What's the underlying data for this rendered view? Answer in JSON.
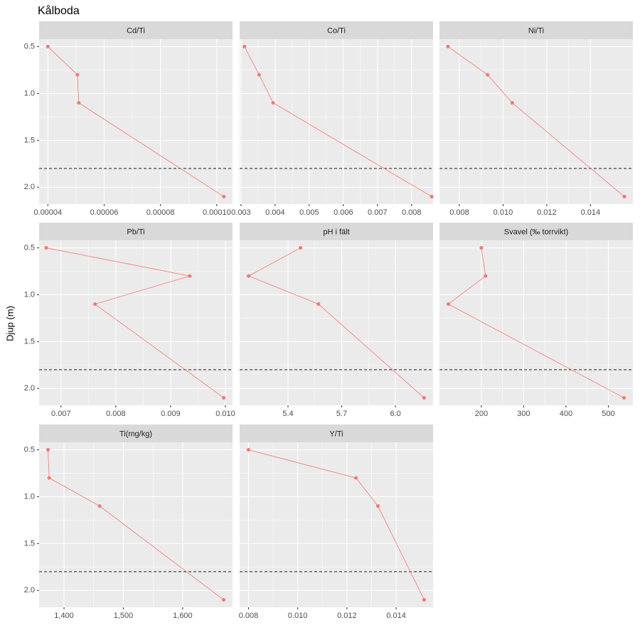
{
  "title": "Kålboda",
  "y_label": "Djup (m)",
  "chart_data": [
    {
      "type": "line",
      "title": "Cd/Ti",
      "x": [
        4e-05,
        5.05e-05,
        5.1e-05,
        0.0001025
      ],
      "y": [
        0.5,
        0.8,
        1.1,
        2.1
      ],
      "color": "#f8766d",
      "xlim": [
        3.69e-05,
        0.0001056
      ],
      "xticks": [
        4e-05,
        6e-05,
        8e-05,
        {
          "value": 0.0001,
          "label": "0.00010"
        }
      ],
      "ylim": [
        0.42,
        2.18
      ],
      "yticks": [
        0.5,
        {
          "value": 1,
          "label": "1.0"
        },
        1.5,
        {
          "value": 2,
          "label": "2.0"
        }
      ],
      "y_reverse": true,
      "hline": 1.8,
      "grid": true
    },
    {
      "type": "line",
      "title": "Co/Ti",
      "x": [
        0.0031,
        0.00353,
        0.00394,
        0.00859
      ],
      "y": [
        0.5,
        0.8,
        1.1,
        2.1
      ],
      "color": "#f8766d",
      "xlim": [
        0.00296,
        0.00863
      ],
      "xticks": [
        0.003,
        0.004,
        0.005,
        0.006,
        0.007,
        0.008
      ],
      "ylim": [
        0.42,
        2.18
      ],
      "yticks": [
        0.5,
        {
          "value": 1,
          "label": "1.0"
        },
        1.5,
        {
          "value": 2,
          "label": "2.0"
        }
      ],
      "y_reverse": true,
      "hline": 1.8,
      "grid": true
    },
    {
      "type": "line",
      "title": "Ni/Ti",
      "x": [
        0.00748,
        0.00929,
        0.01042,
        0.01555
      ],
      "y": [
        0.5,
        0.8,
        1.1,
        2.1
      ],
      "color": "#f8766d",
      "xlim": [
        0.00709,
        0.01594
      ],
      "xticks": [
        0.008,
        {
          "value": 0.01,
          "label": "0.010"
        },
        0.012,
        0.014
      ],
      "ylim": [
        0.42,
        2.18
      ],
      "yticks": [
        0.5,
        {
          "value": 1,
          "label": "1.0"
        },
        1.5,
        {
          "value": 2,
          "label": "2.0"
        }
      ],
      "y_reverse": true,
      "hline": 1.8,
      "grid": true
    },
    {
      "type": "line",
      "title": "Pb/Ti",
      "x": [
        0.00673,
        0.00935,
        0.00762,
        0.00997
      ],
      "y": [
        0.5,
        0.8,
        1.1,
        2.1
      ],
      "color": "#f8766d",
      "xlim": [
        0.0066,
        0.01013
      ],
      "xticks": [
        0.007,
        0.008,
        0.009,
        {
          "value": 0.01,
          "label": "0.010"
        }
      ],
      "ylim": [
        0.42,
        2.18
      ],
      "yticks": [
        0.5,
        {
          "value": 1,
          "label": "1.0"
        },
        1.5,
        {
          "value": 2,
          "label": "2.0"
        }
      ],
      "y_reverse": true,
      "hline": 1.8,
      "grid": true
    },
    {
      "type": "line",
      "title": "pH i fält",
      "x": [
        5.47,
        5.18,
        5.57,
        6.16
      ],
      "y": [
        0.5,
        0.8,
        1.1,
        2.1
      ],
      "color": "#f8766d",
      "xlim": [
        5.13,
        6.21
      ],
      "xticks": [
        5.4,
        5.7,
        {
          "value": 6,
          "label": "6.0"
        }
      ],
      "ylim": [
        0.42,
        2.18
      ],
      "yticks": [
        0.5,
        {
          "value": 1,
          "label": "1.0"
        },
        1.5,
        {
          "value": 2,
          "label": "2.0"
        }
      ],
      "y_reverse": true,
      "hline": 1.8,
      "grid": true
    },
    {
      "type": "line",
      "title": "Svavel (‰ torrvikt)",
      "x": [
        200,
        210,
        122,
        537
      ],
      "y": [
        0.5,
        0.8,
        1.1,
        2.1
      ],
      "color": "#f8766d",
      "xlim": [
        101,
        558
      ],
      "xticks": [
        200,
        300,
        400,
        500
      ],
      "ylim": [
        0.42,
        2.18
      ],
      "yticks": [
        0.5,
        {
          "value": 1,
          "label": "1.0"
        },
        1.5,
        {
          "value": 2,
          "label": "2.0"
        }
      ],
      "y_reverse": true,
      "hline": 1.8,
      "grid": true
    },
    {
      "type": "line",
      "title": "Ti(mg/kg)",
      "x": [
        1373,
        1375,
        1460,
        1669
      ],
      "y": [
        0.5,
        0.8,
        1.1,
        2.1
      ],
      "color": "#f8766d",
      "xlim": [
        1358,
        1684
      ],
      "xticks": [
        {
          "value": 1400,
          "label": "1,400"
        },
        {
          "value": 1500,
          "label": "1,500"
        },
        {
          "value": 1600,
          "label": "1,600"
        }
      ],
      "ylim": [
        0.42,
        2.18
      ],
      "yticks": [
        0.5,
        {
          "value": 1,
          "label": "1.0"
        },
        1.5,
        {
          "value": 2,
          "label": "2.0"
        }
      ],
      "y_reverse": true,
      "hline": 1.8,
      "grid": true
    },
    {
      "type": "line",
      "title": "Y/Ti",
      "x": [
        0.008,
        0.01237,
        0.01326,
        0.01514
      ],
      "y": [
        0.5,
        0.8,
        1.1,
        2.1
      ],
      "color": "#f8766d",
      "xlim": [
        0.00764,
        0.0155
      ],
      "xticks": [
        0.008,
        {
          "value": 0.01,
          "label": "0.010"
        },
        0.012,
        0.014
      ],
      "ylim": [
        0.42,
        2.18
      ],
      "yticks": [
        0.5,
        {
          "value": 1,
          "label": "1.0"
        },
        1.5,
        {
          "value": 2,
          "label": "2.0"
        }
      ],
      "y_reverse": true,
      "hline": 1.8,
      "grid": true
    }
  ]
}
